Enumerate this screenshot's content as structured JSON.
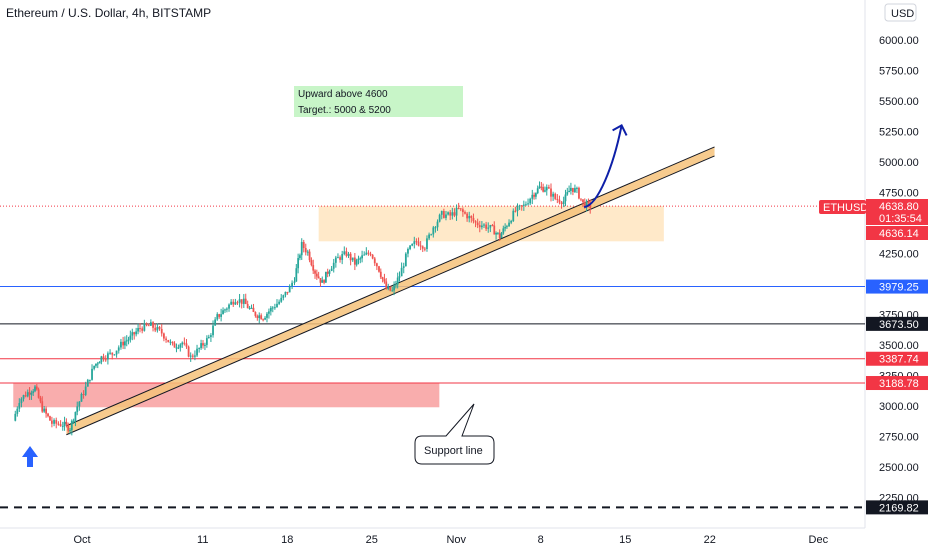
{
  "chart_data": {
    "type": "candlestick",
    "title": "Ethereum / U.S. Dollar, 4h, BITSTAMP",
    "currency_label": "USD",
    "y_scale": "linear",
    "ylim": [
      2110,
      6250
    ],
    "y_ticks": [
      "6000.00",
      "5750.00",
      "5500.00",
      "5250.00",
      "5000.00",
      "4750.00",
      "4250.00",
      "3750.00",
      "3500.00",
      "3250.00",
      "3000.00",
      "2750.00",
      "2500.00",
      "2250.00"
    ],
    "x_ticks": [
      {
        "label": "Oct",
        "day": 1
      },
      {
        "label": "11",
        "day": 11
      },
      {
        "label": "18",
        "day": 18
      },
      {
        "label": "25",
        "day": 25
      },
      {
        "label": "Nov",
        "day": 32
      },
      {
        "label": "8",
        "day": 39
      },
      {
        "label": "15",
        "day": 46
      },
      {
        "label": "22",
        "day": 53
      },
      {
        "label": "Dec",
        "day": 62
      }
    ],
    "xlim_days": [
      -4.7,
      65.5
    ],
    "price_path": [
      [
        -4.7,
        2880
      ],
      [
        -4.2,
        3050
      ],
      [
        -3.5,
        3110
      ],
      [
        -2.9,
        3150
      ],
      [
        -2.3,
        2980
      ],
      [
        -1.5,
        2860
      ],
      [
        -0.6,
        2850
      ],
      [
        0.0,
        2820
      ],
      [
        0.6,
        3000
      ],
      [
        1.3,
        3150
      ],
      [
        2.0,
        3330
      ],
      [
        2.6,
        3400
      ],
      [
        3.5,
        3430
      ],
      [
        4.4,
        3520
      ],
      [
        5.0,
        3560
      ],
      [
        5.8,
        3640
      ],
      [
        6.7,
        3660
      ],
      [
        7.6,
        3600
      ],
      [
        8.5,
        3490
      ],
      [
        9.3,
        3520
      ],
      [
        10.0,
        3400
      ],
      [
        10.7,
        3470
      ],
      [
        11.5,
        3560
      ],
      [
        12.2,
        3730
      ],
      [
        13.0,
        3810
      ],
      [
        13.7,
        3880
      ],
      [
        14.4,
        3850
      ],
      [
        15.2,
        3760
      ],
      [
        16.0,
        3730
      ],
      [
        16.8,
        3810
      ],
      [
        17.5,
        3870
      ],
      [
        18.2,
        3970
      ],
      [
        18.6,
        4050
      ],
      [
        19.2,
        4320
      ],
      [
        19.7,
        4260
      ],
      [
        20.3,
        4100
      ],
      [
        20.9,
        4010
      ],
      [
        21.5,
        4130
      ],
      [
        22.2,
        4210
      ],
      [
        22.9,
        4250
      ],
      [
        23.6,
        4170
      ],
      [
        24.2,
        4220
      ],
      [
        24.9,
        4260
      ],
      [
        25.6,
        4120
      ],
      [
        26.2,
        3960
      ],
      [
        26.7,
        3940
      ],
      [
        27.3,
        4070
      ],
      [
        28.0,
        4270
      ],
      [
        28.7,
        4350
      ],
      [
        29.4,
        4310
      ],
      [
        30.1,
        4470
      ],
      [
        30.8,
        4570
      ],
      [
        31.5,
        4560
      ],
      [
        32.2,
        4610
      ],
      [
        32.9,
        4560
      ],
      [
        33.6,
        4500
      ],
      [
        34.3,
        4480
      ],
      [
        35.0,
        4450
      ],
      [
        35.6,
        4390
      ],
      [
        36.2,
        4490
      ],
      [
        36.9,
        4600
      ],
      [
        37.6,
        4640
      ],
      [
        38.3,
        4730
      ],
      [
        38.9,
        4790
      ],
      [
        39.5,
        4780
      ],
      [
        40.2,
        4700
      ],
      [
        40.9,
        4680
      ],
      [
        41.5,
        4790
      ],
      [
        42.0,
        4760
      ],
      [
        42.5,
        4660
      ],
      [
        43.1,
        4636
      ]
    ],
    "support_line": {
      "from": {
        "day": -0.3,
        "price": 2765
      },
      "to": {
        "day": 53.4,
        "price": 5050
      }
    },
    "horizontal_levels": [
      {
        "price": 3979.25,
        "label": "3979.25",
        "color": "#2962ff",
        "style": "solid"
      },
      {
        "price": 3673.5,
        "label": "3673.50",
        "color": "#131722",
        "style": "solid"
      },
      {
        "price": 3387.74,
        "label": "3387.74",
        "color": "#f23645",
        "style": "solid"
      },
      {
        "price": 3188.78,
        "label": "3188.78",
        "color": "#f23645",
        "style": "solid"
      },
      {
        "price": 2169.82,
        "label": "2169.82",
        "color": "#131722",
        "style": "dashed"
      }
    ],
    "last_price": {
      "symbol": "ETHUSD",
      "price": "4638.80",
      "countdown": "01:35:54",
      "value": 4638.8
    },
    "prev_close_tag": {
      "price": "4636.14",
      "value": 4636.14
    },
    "zones": [
      {
        "kind": "resistance",
        "color": "#ffe5bf",
        "from_day": 20.6,
        "to_day": 49.2,
        "top": 4640,
        "bottom": 4350
      },
      {
        "kind": "demand",
        "color": "#f9a9a9",
        "from_day": -4.7,
        "to_day": 30.6,
        "top": 3190,
        "bottom": 2990
      }
    ],
    "annotations": [
      {
        "kind": "box",
        "lines": [
          "Upward above 4600",
          "Target.: 5000 & 5200"
        ],
        "color": "#c8f5c8"
      },
      {
        "kind": "callout",
        "text": "Support line"
      }
    ],
    "projection_arrow": {
      "color": "#0d1fa8",
      "from": {
        "day": 42.6,
        "price": 4630
      },
      "to": {
        "day": 45.7,
        "price": 5300
      }
    },
    "up_arrow_color": "#2962ff"
  }
}
